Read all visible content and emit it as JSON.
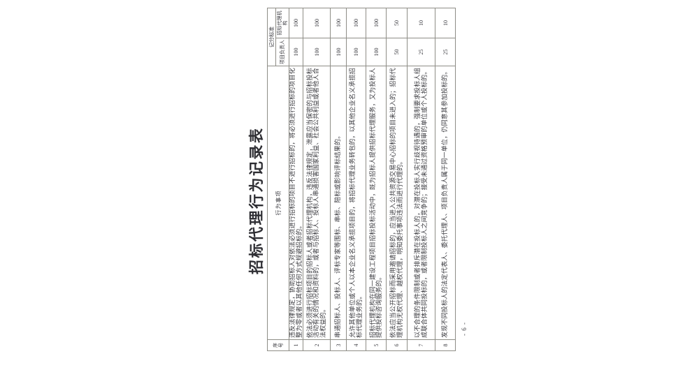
{
  "page": {
    "title": "招标代理行为记录表",
    "page_number": "- 6 -"
  },
  "table": {
    "headers": {
      "index": "序号",
      "behavior": "行为事项",
      "score_group": "记分标准",
      "score_person": "项目负责人",
      "score_agency": "招标代理机构"
    },
    "rows": [
      {
        "no": "1",
        "behavior": "违反法律规定，协助招标人对依法必须进行招标的项目不进行招标的，将必须进行招标的项目化整为零或者以其他任何方式规避招标的。",
        "person": "100",
        "agency": "100"
      },
      {
        "no": "2",
        "behavior": "依法必须进行招标项目的招标人或者招标代理机构，违反法律规定，泄露应当保密的与招标投标活动有关的情况和资料的，或者与招标人、投标人串通损害国家利益、社会公共利益或者他人合法权益的。",
        "person": "100",
        "agency": "100"
      },
      {
        "no": "3",
        "behavior": "串通招标人、投标人、评标专家等围标、串标、陪标或影响评标结果的。",
        "person": "100",
        "agency": "100"
      },
      {
        "no": "4",
        "behavior": "允许其他单位或个人以本企业名义承揽项目的，将招标代理业务转包的，以其他企业名义承揽招标代理业务的。",
        "person": "100",
        "agency": "100"
      },
      {
        "no": "5",
        "behavior": "招标代理机构在同一建设工程项目招标投标活动中，既为招标人提供招标代理服务，又为投标人提供投标咨询服务的。",
        "person": "100",
        "agency": "100"
      },
      {
        "no": "6",
        "behavior": "依法应当公开招标而采用邀请招标的，应当进入公共资源交易中心招标的项目未进入的；招标代理机构无权代理、越权代理，明知委托事项违法而进行代理的。",
        "person": "50",
        "agency": "50"
      },
      {
        "no": "7",
        "behavior": "以不合理的条件限制或者排斥潜在投标人的，对潜在投标人实行歧视待遇的，强制要求投标人组成联合体共同投标的，或者限制投标人之间竞争的；接受未通过资格预审的单位或个人投标的。",
        "person": "25",
        "agency": "10"
      },
      {
        "no": "8",
        "behavior": "发现不同投标人的法定代表人、委托代理人、项目负责人属于同一单位，仍同意其参加投标的。",
        "person": "25",
        "agency": "10"
      }
    ]
  },
  "colors": {
    "paper": "#ffffff",
    "grid_line": "#8e8d86",
    "ink": "#3b3b40"
  }
}
